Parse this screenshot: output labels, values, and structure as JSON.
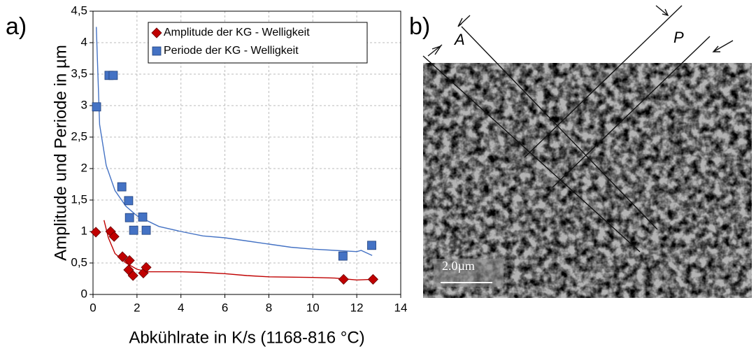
{
  "panel_labels": [
    "a)",
    "b)"
  ],
  "image": {
    "labels": [
      "A",
      "P"
    ],
    "scale_bar": "2.0µm"
  },
  "chart_data": {
    "type": "scatter",
    "x_label": "Abkühlrate in K/s (1168-816 °C)",
    "y_label": "Amplitude und Periode in µm",
    "xlim": [
      0,
      14
    ],
    "xticks": [
      0,
      2,
      4,
      6,
      8,
      10,
      12,
      14
    ],
    "ylim": [
      0,
      4.5
    ],
    "yticks": [
      0,
      {
        "value": 0.5,
        "label": "0,5"
      },
      1,
      {
        "value": 1.5,
        "label": "1,5"
      },
      2,
      {
        "value": 2.5,
        "label": "2,5"
      },
      3,
      {
        "value": 3.5,
        "label": "3,5"
      },
      4,
      {
        "value": 4.5,
        "label": "4,5"
      }
    ],
    "grid": true,
    "legend": "upper center",
    "series": [
      {
        "name": "Amplitude der KG - Welligkeit",
        "color": "#c00000",
        "marker": "diamond",
        "x": [
          0.13,
          0.8,
          0.96,
          1.34,
          1.66,
          1.62,
          1.82,
          2.29,
          2.42,
          11.4,
          12.74
        ],
        "values": [
          0.99,
          1.0,
          0.92,
          0.6,
          0.54,
          0.39,
          0.3,
          0.34,
          0.43,
          0.24,
          0.24
        ],
        "trend": {
          "x": [
            0.5,
            0.7,
            1,
            1.5,
            2,
            2.5,
            4,
            5,
            6,
            7,
            8,
            10,
            11,
            12,
            12.7
          ],
          "values": [
            1.18,
            0.9,
            0.65,
            0.5,
            0.4,
            0.36,
            0.36,
            0.35,
            0.33,
            0.3,
            0.28,
            0.27,
            0.26,
            0.23,
            0.24
          ]
        }
      },
      {
        "name": "Periode der KG - Welligkeit",
        "color": "#4472c4",
        "marker": "square",
        "x": [
          0.16,
          0.73,
          0.92,
          1.31,
          1.62,
          1.66,
          1.85,
          2.26,
          2.42,
          11.37,
          12.68
        ],
        "values": [
          2.98,
          3.48,
          3.48,
          1.71,
          1.49,
          1.22,
          1.02,
          1.23,
          1.02,
          0.61,
          0.78
        ],
        "trend": {
          "x": [
            0.15,
            0.3,
            0.6,
            1,
            1.5,
            2,
            3,
            4,
            5,
            6,
            7,
            8,
            9,
            10,
            11,
            12,
            12.2,
            12.7
          ],
          "values": [
            4.25,
            2.7,
            2.05,
            1.65,
            1.4,
            1.25,
            1.08,
            1.0,
            0.93,
            0.9,
            0.85,
            0.8,
            0.75,
            0.72,
            0.7,
            0.68,
            0.7,
            0.62
          ]
        }
      }
    ]
  }
}
